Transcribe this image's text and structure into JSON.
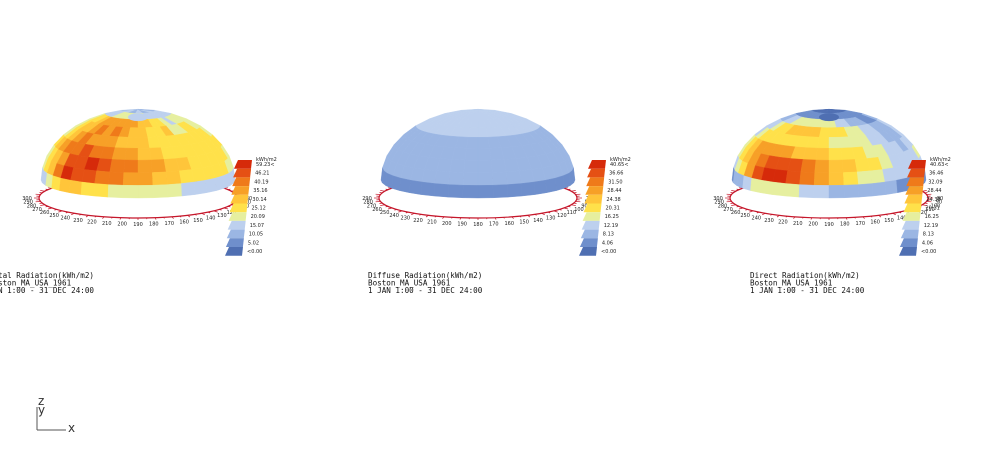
{
  "colors": {
    "scale": [
      "#4f6fb2",
      "#6f8fcc",
      "#9bb6e3",
      "#bdd0ee",
      "#e6ef9f",
      "#ffe14a",
      "#ffc53a",
      "#f7a027",
      "#ef7a1a",
      "#e55014",
      "#d62a0a"
    ],
    "ring": "#c5162a",
    "background": "#ffffff"
  },
  "domes": [
    {
      "id": "total",
      "caption": [
        "tal Radiation(kWh/m2)",
        "ston_MA_USA_1961",
        "N 1:00 - 31 DEC 24:00"
      ],
      "legend": {
        "unit": "kWh/m2",
        "labels": [
          "59.23<",
          "46.21",
          "40.19",
          "35.16",
          "30.14",
          "25.12",
          "20.09",
          "15.07",
          "10.05",
          "5.02",
          "<0.00"
        ]
      },
      "bands": [
        [
          3,
          2,
          3,
          3,
          3,
          3,
          2,
          2,
          2,
          3,
          3,
          3,
          2,
          2,
          2,
          3,
          3,
          3,
          2,
          2
        ],
        [
          3,
          3,
          3,
          3,
          4,
          4,
          4,
          4,
          4,
          4,
          4,
          4,
          3,
          3,
          3,
          3,
          3,
          3,
          3,
          3
        ],
        [
          4,
          5,
          5,
          6,
          7,
          7,
          7,
          7,
          7,
          7,
          6,
          6,
          5,
          5,
          4,
          3,
          4,
          4,
          4,
          4
        ],
        [
          4,
          5,
          6,
          6,
          7,
          8,
          7,
          8,
          7,
          6,
          6,
          5,
          5,
          6,
          4,
          4,
          5,
          5,
          4,
          4
        ],
        [
          4,
          5,
          6,
          7,
          8,
          7,
          7,
          7,
          6,
          6,
          6,
          5,
          5,
          5,
          5,
          5,
          5,
          5,
          5,
          4
        ],
        [
          5,
          6,
          7,
          8,
          8,
          9,
          8,
          8,
          7,
          7,
          6,
          6,
          5,
          5,
          5,
          5,
          5,
          5,
          5,
          5
        ],
        [
          4,
          5,
          6,
          7,
          9,
          9,
          10,
          9,
          8,
          8,
          7,
          7,
          6,
          6,
          5,
          5,
          5,
          5,
          5,
          4
        ],
        [
          4,
          5,
          6,
          8,
          10,
          9,
          9,
          8,
          8,
          7,
          7,
          6,
          6,
          5,
          5,
          5,
          5,
          5,
          4,
          4
        ],
        [
          3,
          3,
          4,
          5,
          6,
          6,
          5,
          5,
          4,
          4,
          4,
          4,
          4,
          3,
          3,
          3,
          3,
          3,
          3,
          3
        ]
      ],
      "tick_labels": [
        "80",
        "90",
        "100",
        "110",
        "120",
        "130",
        "140",
        "150",
        "160",
        "170",
        "180",
        "190",
        "200",
        "210",
        "220",
        "230",
        "240",
        "250",
        "260",
        "270",
        "280",
        "290",
        "300"
      ]
    },
    {
      "id": "diffuse",
      "caption": [
        "Diffuse Radiation(kWh/m2)",
        "Boston_MA_USA_1961",
        "1 JAN 1:00 - 31 DEC 24:00"
      ],
      "legend": {
        "unit": "kWh/m2",
        "labels": [
          "40.65<",
          "36.66",
          "31.50",
          "28.44",
          "24.38",
          "20.31",
          "16.25",
          "12.19",
          "8.13",
          "4.06",
          "<0.00"
        ]
      },
      "bands": [
        [
          3,
          3,
          3,
          3,
          3,
          3,
          3,
          3,
          3,
          3,
          3,
          3,
          3,
          3,
          3,
          3,
          3,
          3,
          3,
          3
        ],
        [
          3,
          3,
          3,
          3,
          3,
          3,
          3,
          3,
          3,
          3,
          3,
          3,
          3,
          3,
          3,
          3,
          3,
          3,
          3,
          3
        ],
        [
          3,
          3,
          3,
          3,
          3,
          3,
          3,
          3,
          3,
          3,
          3,
          3,
          3,
          3,
          3,
          3,
          3,
          3,
          3,
          3
        ],
        [
          3,
          3,
          3,
          3,
          3,
          3,
          3,
          3,
          3,
          3,
          3,
          3,
          3,
          3,
          3,
          3,
          3,
          3,
          3,
          3
        ],
        [
          2,
          2,
          2,
          2,
          2,
          2,
          2,
          2,
          2,
          2,
          2,
          2,
          2,
          2,
          2,
          2,
          2,
          2,
          2,
          2
        ],
        [
          2,
          2,
          2,
          2,
          2,
          2,
          2,
          2,
          2,
          2,
          2,
          2,
          2,
          2,
          2,
          2,
          2,
          2,
          2,
          2
        ],
        [
          2,
          2,
          2,
          2,
          2,
          2,
          2,
          2,
          2,
          2,
          2,
          2,
          2,
          2,
          2,
          2,
          2,
          2,
          2,
          2
        ],
        [
          2,
          2,
          2,
          2,
          2,
          2,
          2,
          2,
          2,
          2,
          2,
          2,
          2,
          2,
          2,
          2,
          2,
          2,
          2,
          2
        ],
        [
          1,
          1,
          1,
          1,
          1,
          1,
          1,
          1,
          1,
          1,
          1,
          1,
          1,
          1,
          1,
          1,
          1,
          1,
          1,
          1
        ]
      ],
      "tick_labels": [
        "70",
        "80",
        "90",
        "100",
        "110",
        "120",
        "130",
        "140",
        "150",
        "160",
        "170",
        "180",
        "190",
        "200",
        "210",
        "220",
        "230",
        "240",
        "250",
        "260",
        "270",
        "280",
        "290"
      ]
    },
    {
      "id": "direct",
      "caption": [
        "Direct Radiation(kWh/m2)",
        "Boston_MA_USA_1961",
        "1 JAN 1:00 - 31 DEC 24:00"
      ],
      "legend": {
        "unit": "kWh/m2",
        "labels": [
          "40.63<",
          "36.46",
          "32.09",
          "28.44",
          "24.38",
          "20.31",
          "16.25",
          "12.19",
          "8.13",
          "4.06",
          "<0.00"
        ]
      },
      "bands": [
        [
          0,
          0,
          0,
          0,
          0,
          0,
          0,
          0,
          0,
          0,
          0,
          0,
          0,
          0,
          0,
          0,
          0,
          0,
          0,
          0
        ],
        [
          1,
          1,
          1,
          1,
          1,
          1,
          1,
          1,
          1,
          1,
          1,
          1,
          1,
          1,
          1,
          1,
          1,
          1,
          1,
          1
        ],
        [
          2,
          2,
          3,
          3,
          4,
          4,
          4,
          4,
          4,
          4,
          4,
          3,
          3,
          2,
          2,
          2,
          1,
          1,
          1,
          2
        ],
        [
          3,
          3,
          4,
          5,
          5,
          6,
          6,
          6,
          6,
          5,
          5,
          5,
          4,
          4,
          3,
          3,
          2,
          2,
          2,
          3
        ],
        [
          3,
          4,
          5,
          5,
          5,
          5,
          5,
          5,
          5,
          5,
          4,
          4,
          4,
          4,
          3,
          3,
          2,
          2,
          2,
          3
        ],
        [
          4,
          5,
          6,
          7,
          7,
          7,
          7,
          6,
          6,
          6,
          5,
          5,
          5,
          4,
          4,
          3,
          3,
          2,
          3,
          3
        ],
        [
          4,
          5,
          6,
          7,
          8,
          9,
          9,
          9,
          8,
          7,
          6,
          6,
          5,
          5,
          4,
          3,
          3,
          3,
          3,
          4
        ],
        [
          3,
          4,
          5,
          7,
          9,
          10,
          10,
          9,
          8,
          7,
          6,
          5,
          4,
          4,
          3,
          3,
          3,
          3,
          3,
          3
        ],
        [
          1,
          2,
          2,
          3,
          4,
          4,
          4,
          4,
          3,
          3,
          2,
          2,
          2,
          2,
          2,
          1,
          1,
          1,
          1,
          1
        ]
      ],
      "tick_labels": [
        "80",
        "90",
        "100",
        "110",
        "120",
        "130",
        "140",
        "150",
        "160",
        "170",
        "180",
        "190",
        "200",
        "210",
        "220",
        "230",
        "240",
        "250",
        "260",
        "270",
        "280",
        "290",
        "300"
      ]
    }
  ],
  "axes_gizmo": {
    "z": "z",
    "y": "y",
    "x": "x"
  }
}
